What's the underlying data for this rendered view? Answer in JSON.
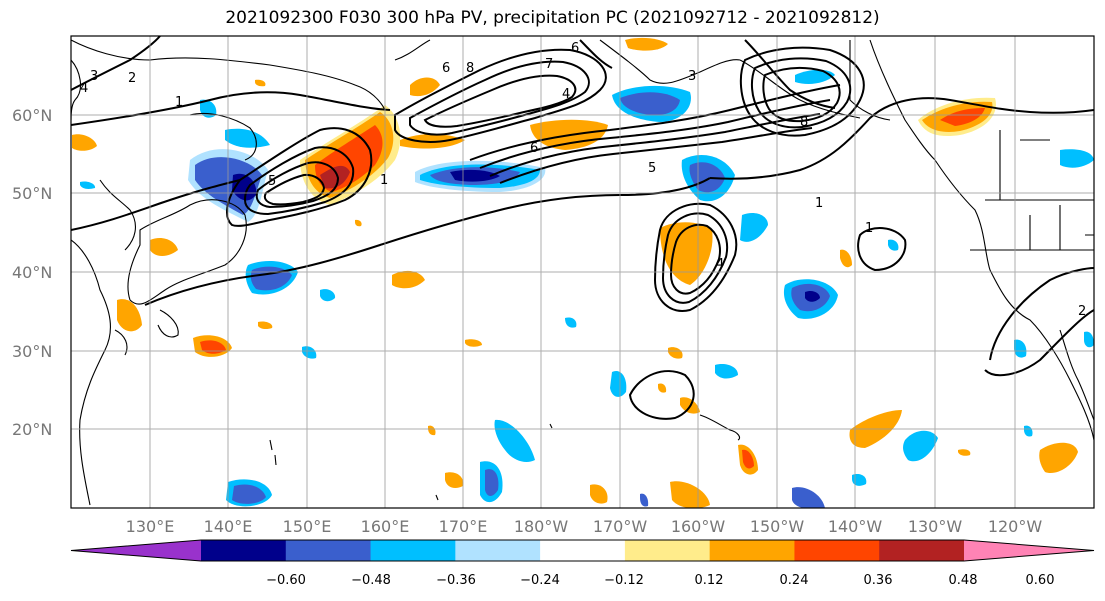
{
  "title": "2021092300 F030 300 hPa PV, precipitation PC (2021092712 - 2021092812)",
  "map": {
    "lat_labels": [
      "60°N",
      "50°N",
      "40°N",
      "30°N",
      "20°N"
    ],
    "lon_labels": [
      "130°E",
      "140°E",
      "150°E",
      "160°E",
      "170°E",
      "180°W",
      "170°W",
      "160°W",
      "150°W",
      "140°W",
      "130°W",
      "120°W"
    ],
    "contour_labels": [
      "1",
      "2",
      "3",
      "4",
      "5",
      "6",
      "7",
      "8",
      "1",
      "4",
      "1",
      "2",
      "8",
      "6",
      "5",
      "4",
      "1",
      "3",
      "6"
    ],
    "background": "#ffffff",
    "grid_color": "#999999"
  },
  "colorbar": {
    "colors": [
      "#9932cc",
      "#00008b",
      "#3a5fcd",
      "#00bfff",
      "#b0e2ff",
      "#ffffff",
      "#ffec8b",
      "#ffa500",
      "#ff4500",
      "#b22222",
      "#ff83b5"
    ],
    "tick_labels": [
      "−0.60",
      "−0.48",
      "−0.36",
      "−0.24",
      "−0.12",
      "0.12",
      "0.24",
      "0.36",
      "0.48",
      "0.60"
    ]
  }
}
